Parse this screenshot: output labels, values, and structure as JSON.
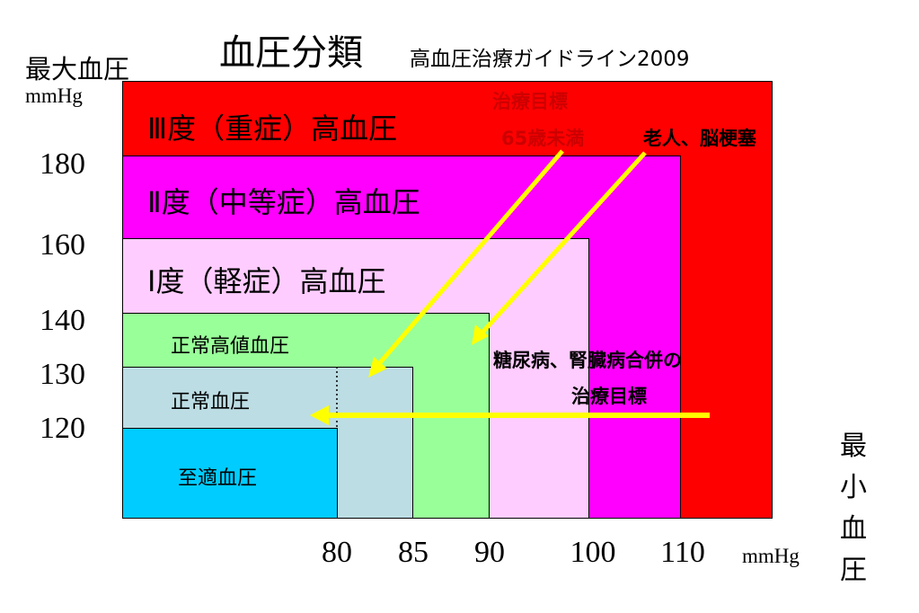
{
  "title": "血圧分類",
  "subtitle": "高血圧治療ガイドライン2009",
  "y_axis": {
    "label": "最大血圧",
    "unit": "mmHg",
    "ticks": [
      "180",
      "160",
      "140",
      "130",
      "120"
    ]
  },
  "x_axis": {
    "label": "最小血圧",
    "unit": "mmHg",
    "ticks": [
      "80",
      "85",
      "90",
      "100",
      "110"
    ]
  },
  "zones": [
    {
      "key": "grade3",
      "label": "Ⅲ度（重症）高血圧",
      "color": "#ff0000"
    },
    {
      "key": "grade2",
      "label": "Ⅱ度（中等症）高血圧",
      "color": "#ff00ff"
    },
    {
      "key": "grade1",
      "label": "Ⅰ度（軽症）高血圧",
      "color": "#ffccff"
    },
    {
      "key": "high_normal",
      "label": "正常高値血圧",
      "color": "#99ff99"
    },
    {
      "key": "normal",
      "label": "正常血圧",
      "color": "#bcdde3"
    },
    {
      "key": "optimal",
      "label": "至適血圧",
      "color": "#00ccff"
    }
  ],
  "annotations": {
    "target_under65": {
      "line1": "治療目標",
      "line2": "65歳未満"
    },
    "elderly": "老人、脳梗塞",
    "diabetes": {
      "line1": "糖尿病、腎臓病合併の",
      "line2": "治療目標"
    }
  },
  "colors": {
    "arrow": "#ffff00",
    "annotation_red": "#cc0000"
  }
}
